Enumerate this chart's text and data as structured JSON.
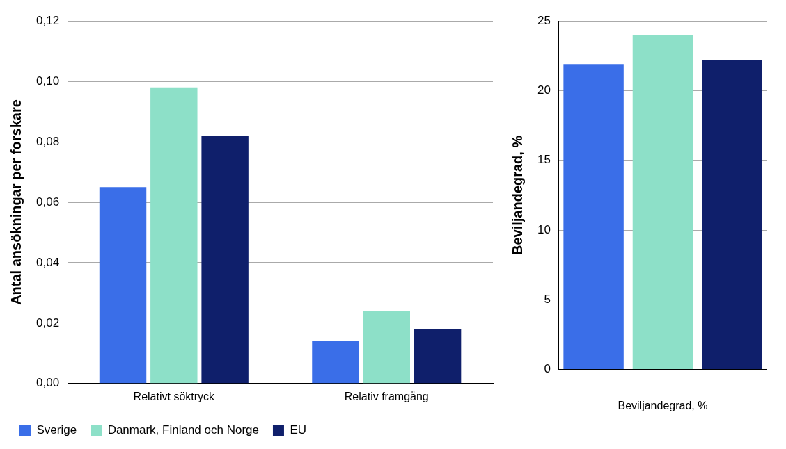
{
  "chart_data": [
    {
      "type": "bar",
      "ylabel": "Antal ansökningar per forskare",
      "categories": [
        "Relativt söktryck",
        "Relativ framgång"
      ],
      "series": [
        {
          "name": "Sverige",
          "color": "#3a6ee8",
          "values": [
            0.065,
            0.014
          ]
        },
        {
          "name": "Danmark, Finland och Norge",
          "color": "#8de0c8",
          "values": [
            0.098,
            0.024
          ]
        },
        {
          "name": "EU",
          "color": "#0f1f6b",
          "values": [
            0.082,
            0.018
          ]
        }
      ],
      "ylim": [
        0,
        0.12
      ],
      "yticks": [
        {
          "value": 0,
          "label": "0,00"
        },
        {
          "value": 0.02,
          "label": "0,02"
        },
        {
          "value": 0.04,
          "label": "0,04"
        },
        {
          "value": 0.06,
          "label": "0,06"
        },
        {
          "value": 0.08,
          "label": "0,08"
        },
        {
          "value": 0.1,
          "label": "0,10"
        },
        {
          "value": 0.12,
          "label": "0,12"
        }
      ],
      "grid": "y",
      "legend": "bottom"
    },
    {
      "type": "bar",
      "ylabel": "Beviljandegrad, %",
      "xlabel": "Beviljandegrad, %",
      "categories": [
        null,
        null,
        null
      ],
      "series": [
        {
          "colors": [
            "#3a6ee8",
            "#8de0c8",
            "#0f1f6b"
          ],
          "values": [
            21.9,
            24.0,
            22.2
          ]
        }
      ],
      "ylim": [
        0,
        25
      ],
      "yticks": [
        0,
        5,
        10,
        15,
        20,
        25
      ],
      "grid": "y"
    }
  ]
}
